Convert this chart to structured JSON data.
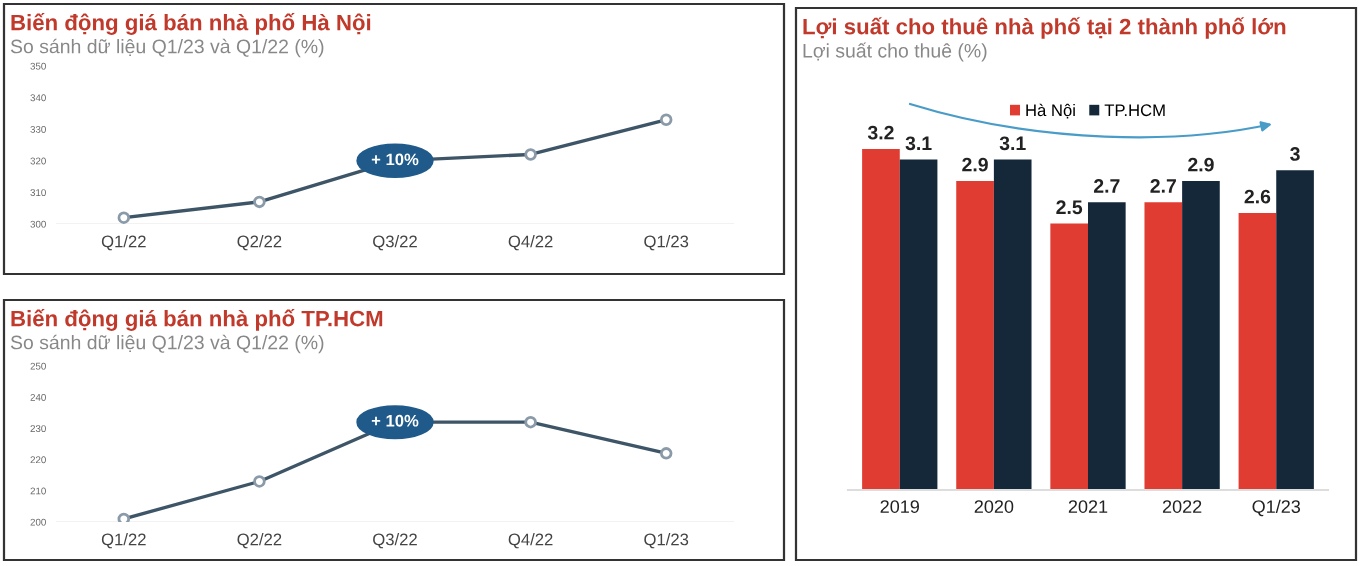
{
  "chart_data": [
    {
      "type": "line",
      "title": "Biến động giá bán nhà phố Hà Nội",
      "subtitle": "So sánh dữ liệu Q1/23 và Q1/22 (%)",
      "categories": [
        "Q1/22",
        "Q2/22",
        "Q3/22",
        "Q4/22",
        "Q1/23"
      ],
      "series": [
        {
          "color": "#3d5566",
          "values": [
            302,
            307,
            320,
            322,
            333
          ]
        }
      ],
      "ylim": [
        300,
        350
      ],
      "yticks": [
        300,
        310,
        320,
        330,
        340,
        350
      ],
      "marker": "circle",
      "line_style": "solid",
      "grid": false,
      "annotations": [
        {
          "text": "+ 10%",
          "x": "Q3/22",
          "y": 320
        }
      ]
    },
    {
      "type": "line",
      "title": "Biến động giá bán nhà phố TP.HCM",
      "subtitle": "So sánh dữ liệu Q1/23 và Q1/22 (%)",
      "categories": [
        "Q1/22",
        "Q2/22",
        "Q3/22",
        "Q4/22",
        "Q1/23"
      ],
      "series": [
        {
          "color": "#3d5566",
          "values": [
            201,
            213,
            232,
            232,
            222
          ]
        }
      ],
      "ylim": [
        200,
        250
      ],
      "yticks": [
        200,
        210,
        220,
        230,
        240,
        250
      ],
      "marker": "circle",
      "line_style": "solid",
      "grid": false,
      "annotations": [
        {
          "text": "+ 10%",
          "x": "Q3/22",
          "y": 232
        }
      ]
    },
    {
      "type": "bar",
      "title": "Lợi suất cho thuê nhà phố tại 2 thành phố lớn",
      "subtitle": "Lợi suất cho thuê (%)",
      "categories": [
        "2019",
        "2020",
        "2021",
        "2022",
        "Q1/23"
      ],
      "series": [
        {
          "name": "Hà Nội",
          "color": "#e03c31",
          "values": [
            3.2,
            2.9,
            2.5,
            2.7,
            2.6
          ]
        },
        {
          "name": "TP.HCM",
          "color": "#15283a",
          "values": [
            3.1,
            3.1,
            2.7,
            2.9,
            3
          ]
        }
      ],
      "data_labels": true,
      "tick_labels": "x",
      "grid": false,
      "legend": "top"
    }
  ]
}
